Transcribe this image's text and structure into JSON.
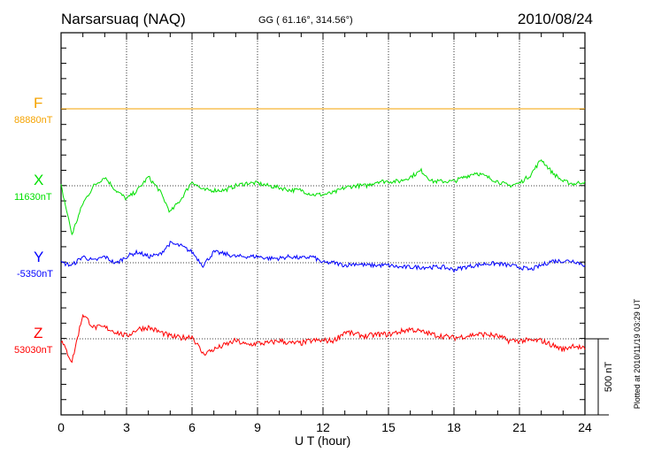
{
  "header": {
    "station": "Narsarsuaq (NAQ)",
    "coords": "GG ( 61.16°, 314.56°)",
    "date": "2010/08/24"
  },
  "footer": {
    "plotted": "Plotted at 2010/11/19 03:29 UT",
    "scale_label": "500 nT"
  },
  "chart_data": {
    "type": "line",
    "title": "Narsarsuaq (NAQ) 2010/08/24",
    "xlabel": "U T (hour)",
    "ylabel": "",
    "xlim": [
      0,
      24
    ],
    "x_ticks": [
      "0",
      "3",
      "6",
      "9",
      "12",
      "15",
      "18",
      "21",
      "24"
    ],
    "grid": "dotted vertical every 3 h",
    "scale_bar_nT": 500,
    "x_step_hours": 0.5,
    "series": [
      {
        "name": "F",
        "baseline": "88880nT",
        "color": "#f5a300",
        "values": [
          0,
          0,
          0,
          0,
          0,
          0,
          0,
          0,
          0,
          0,
          0,
          0,
          0,
          0,
          0,
          0,
          0,
          0,
          0,
          0,
          0,
          0,
          0,
          0,
          0,
          0,
          0,
          0,
          0,
          0,
          0,
          0,
          0,
          0,
          0,
          0,
          0,
          0,
          0,
          0,
          0,
          0,
          0,
          0,
          0,
          0,
          0,
          0,
          0
        ]
      },
      {
        "name": "X",
        "baseline": "11630nT",
        "color": "#00e000",
        "values": [
          0,
          -320,
          -116,
          0,
          58,
          -29,
          -87,
          -29,
          58,
          -29,
          -174,
          -87,
          29,
          -29,
          -29,
          -29,
          0,
          17,
          17,
          0,
          -12,
          -29,
          -29,
          -58,
          -58,
          -46,
          -12,
          0,
          0,
          29,
          29,
          29,
          58,
          99,
          29,
          29,
          29,
          58,
          87,
          58,
          29,
          0,
          17,
          70,
          174,
          87,
          29,
          12,
          29
        ]
      },
      {
        "name": "Y",
        "baseline": "-5350nT",
        "color": "#0000ff",
        "values": [
          0,
          -17,
          41,
          12,
          41,
          -6,
          41,
          70,
          41,
          52,
          128,
          110,
          70,
          -17,
          70,
          58,
          41,
          41,
          41,
          29,
          29,
          41,
          29,
          41,
          0,
          0,
          -17,
          -6,
          -17,
          -17,
          -17,
          -29,
          -29,
          -29,
          -29,
          -29,
          -46,
          -29,
          -17,
          -6,
          -6,
          -17,
          -29,
          -46,
          -17,
          12,
          12,
          12,
          -17
        ]
      },
      {
        "name": "Z",
        "baseline": "53030nT",
        "color": "#ff0000",
        "values": [
          -12,
          -150,
          162,
          75,
          75,
          46,
          17,
          64,
          75,
          46,
          17,
          6,
          17,
          -99,
          -70,
          -41,
          -12,
          -41,
          -29,
          -29,
          -12,
          -29,
          -29,
          -12,
          -12,
          -12,
          46,
          29,
          17,
          29,
          29,
          46,
          64,
          46,
          29,
          17,
          6,
          17,
          29,
          29,
          17,
          -12,
          -12,
          -12,
          -12,
          -41,
          -70,
          -41,
          -70
        ]
      }
    ]
  }
}
